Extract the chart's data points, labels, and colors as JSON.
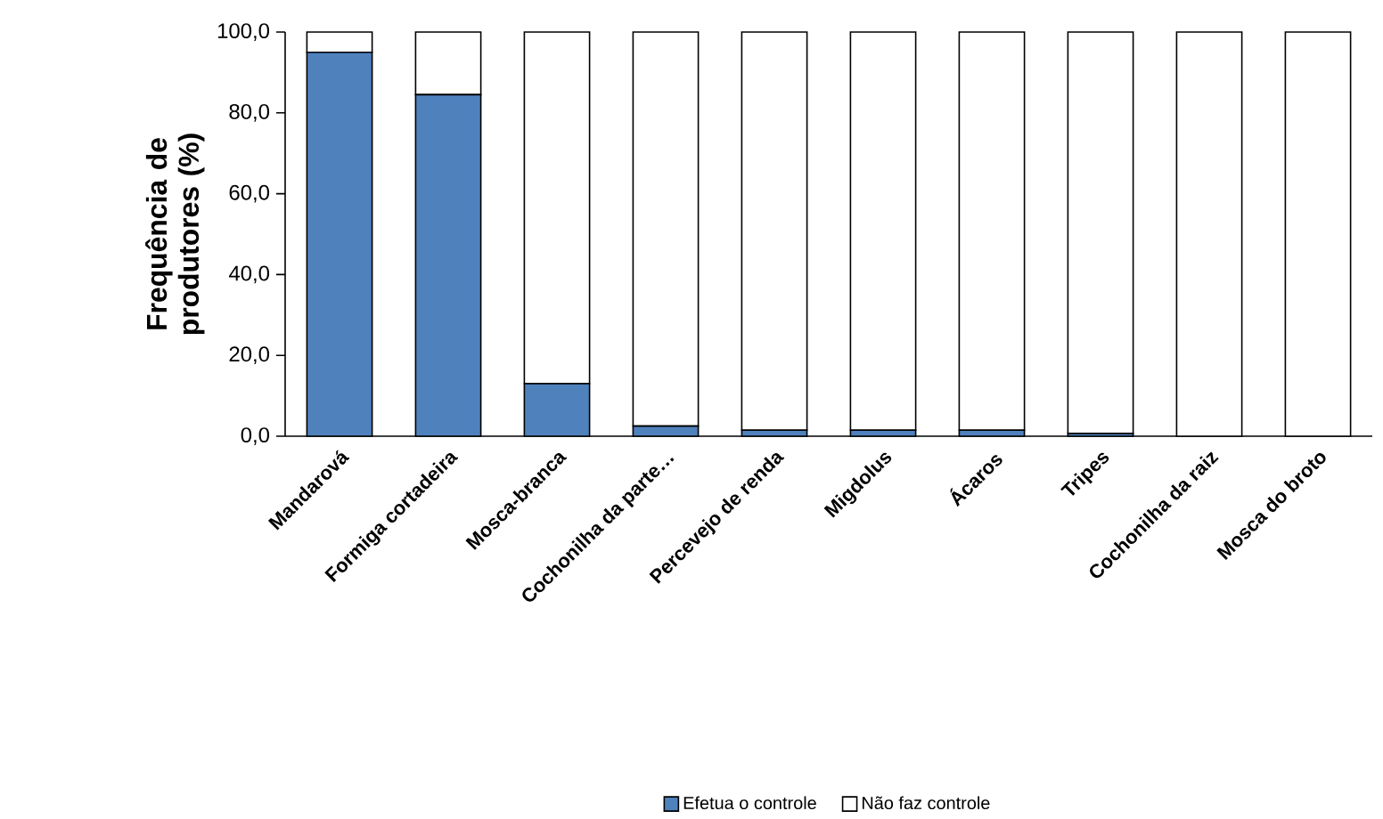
{
  "chart_data": {
    "type": "bar",
    "stacked": true,
    "ylabel": "Frequência de produtores (%)",
    "categories": [
      "Mandarová",
      "Formiga cortadeira",
      "Mosca-branca",
      "Cochonilha da parte…",
      "Percevejo de renda",
      "Migdolus",
      "Ácaros",
      "Tripes",
      "Cochonilha da raiz",
      "Mosca do broto"
    ],
    "series": [
      {
        "name": "Efetua o controle",
        "color": "#4f81bd",
        "values": [
          95,
          84.5,
          13,
          2.5,
          1.5,
          1.5,
          1.5,
          0.7,
          0,
          0
        ]
      },
      {
        "name": "Não faz controle",
        "color": "#ffffff",
        "values": [
          5,
          15.5,
          87,
          97.5,
          98.5,
          98.5,
          98.5,
          99.3,
          100,
          100
        ]
      }
    ],
    "ylim": [
      0,
      100
    ],
    "yticks": [
      {
        "value": 0,
        "label": "0,0"
      },
      {
        "value": 20,
        "label": "20,0"
      },
      {
        "value": 40,
        "label": "40,0"
      },
      {
        "value": 60,
        "label": "60,0"
      },
      {
        "value": 80,
        "label": "80,0"
      },
      {
        "value": 100,
        "label": "100,0"
      }
    ],
    "legend": "bottom"
  }
}
